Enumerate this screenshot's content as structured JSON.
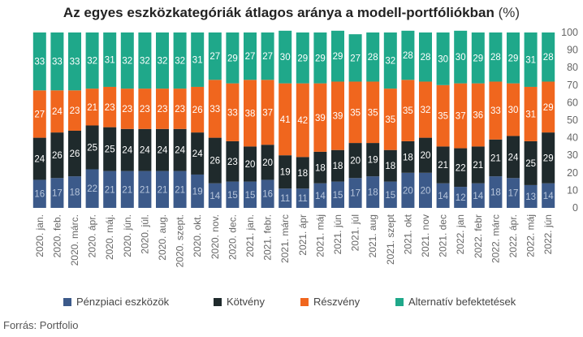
{
  "title": "Az egyes eszközkategóriák átlagos aránya a modell-portfóliókban",
  "title_unit": "(%)",
  "source": "Forrás: Portfolio",
  "colors": {
    "penzpiaci": "#3c5a8a",
    "kotveny": "#1f2a2c",
    "reszveny": "#f0661e",
    "alternativ": "#1fa88a"
  },
  "chart_data": {
    "type": "bar",
    "stacked": true,
    "title": "Az egyes eszközkategóriák átlagos aránya a modell-portfóliókban (%)",
    "ylim": [
      0,
      100
    ],
    "yticks": [
      0,
      10,
      20,
      30,
      40,
      50,
      60,
      70,
      80,
      90,
      100
    ],
    "y_axis_side": "right",
    "legend_position": "bottom",
    "categories": [
      "2020. jan.",
      "2020. feb.",
      "2020. márc.",
      "2020. ápr.",
      "2020. máj.",
      "2020. jún.",
      "2020. júl.",
      "2020. aug.",
      "2020. szept.",
      "2020. okt.",
      "2020. nov.",
      "2020. dec.",
      "2021. jan.",
      "2021. febr.",
      "2021. márc",
      "2021. ápr",
      "2021. máj",
      "2021. jún",
      "2021. júl",
      "2021. aug",
      "2021. szept",
      "2021. okt",
      "2021. nov",
      "2021. dec",
      "2022. jan",
      "2022. febr",
      "2022. márc",
      "2022. ápr.",
      "2022. máj",
      "2022. jún"
    ],
    "series": [
      {
        "name": "Pénzpiaci eszközök",
        "color_key": "penzpiaci",
        "values": [
          16,
          17,
          18,
          22,
          21,
          21,
          21,
          21,
          21,
          19,
          14,
          15,
          15,
          16,
          11,
          11,
          14,
          15,
          17,
          18,
          15,
          20,
          20,
          14,
          12,
          14,
          18,
          17,
          13,
          14
        ]
      },
      {
        "name": "Kötvény",
        "color_key": "kotveny",
        "values": [
          24,
          26,
          26,
          25,
          25,
          24,
          24,
          24,
          24,
          24,
          26,
          23,
          20,
          20,
          19,
          18,
          18,
          18,
          20,
          19,
          18,
          18,
          20,
          21,
          22,
          21,
          21,
          24,
          25,
          29
        ]
      },
      {
        "name": "Részvény",
        "color_key": "reszveny",
        "values": [
          27,
          24,
          23,
          21,
          23,
          23,
          23,
          23,
          23,
          26,
          33,
          33,
          38,
          37,
          41,
          42,
          39,
          39,
          35,
          35,
          35,
          35,
          32,
          35,
          37,
          36,
          33,
          30,
          31,
          29
        ]
      },
      {
        "name": "Alternatív befektetések",
        "color_key": "alternativ",
        "values": [
          33,
          33,
          33,
          32,
          31,
          32,
          32,
          32,
          32,
          31,
          27,
          29,
          27,
          27,
          30,
          29,
          29,
          29,
          27,
          28,
          32,
          28,
          28,
          30,
          30,
          29,
          28,
          29,
          31,
          28
        ]
      }
    ]
  }
}
